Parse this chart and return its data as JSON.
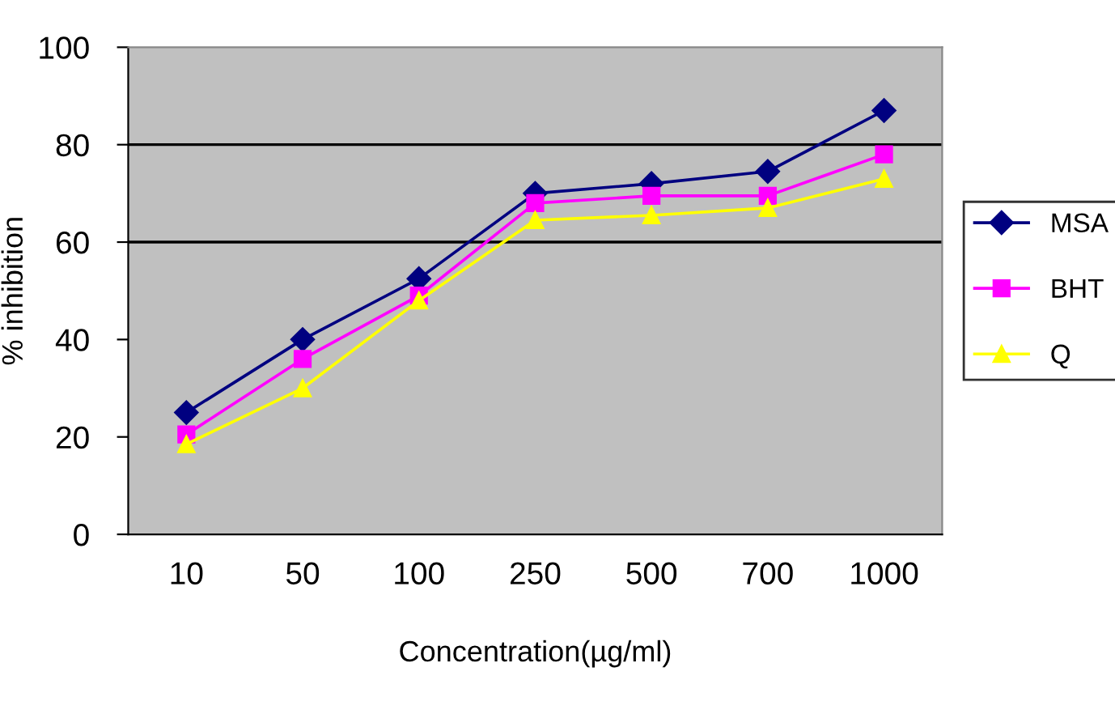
{
  "chart_data": {
    "type": "line",
    "xlabel": "Concentration(µg/ml)",
    "ylabel": "% inhibition",
    "categories": [
      "10",
      "50",
      "100",
      "250",
      "500",
      "700",
      "1000"
    ],
    "series": [
      {
        "name": "MSA",
        "color": "#000080",
        "marker": "diamond",
        "values": [
          25,
          40,
          52.5,
          70,
          72,
          74.5,
          87
        ]
      },
      {
        "name": "BHT",
        "color": "#ff00ff",
        "marker": "square",
        "values": [
          20.5,
          36,
          49,
          68,
          69.5,
          69.5,
          78
        ]
      },
      {
        "name": "Q",
        "color": "#ffff00",
        "marker": "triangle",
        "values": [
          18.5,
          30,
          48,
          64.5,
          65.5,
          67,
          73
        ]
      }
    ],
    "ylim": [
      0,
      100
    ],
    "yticks": [
      0,
      20,
      40,
      60,
      80,
      100
    ],
    "ref_lines": [
      {
        "axis": "y",
        "value": 60,
        "color": "#000000"
      },
      {
        "axis": "y",
        "value": 80,
        "color": "#000000"
      }
    ],
    "grid": false,
    "legend": "right",
    "line_style": "solid"
  }
}
